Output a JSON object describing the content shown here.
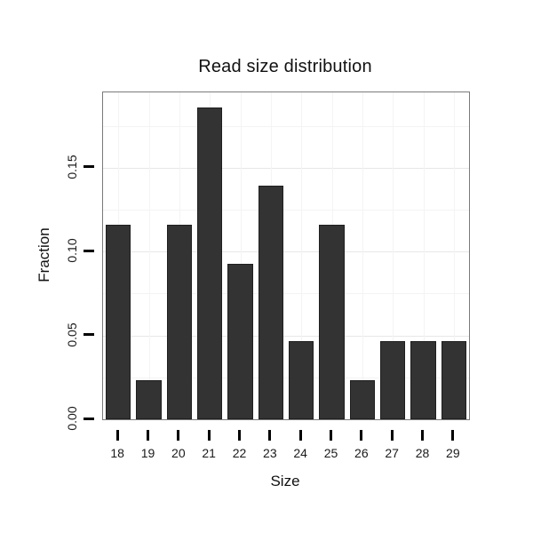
{
  "page": {
    "background_color": "#ffffff"
  },
  "chart_data": {
    "type": "bar",
    "title": "Read size distribution",
    "xlabel": "Size",
    "ylabel": "Fraction",
    "categories": [
      "18",
      "19",
      "20",
      "21",
      "22",
      "23",
      "24",
      "25",
      "26",
      "27",
      "28",
      "29"
    ],
    "values": [
      0.1163,
      0.0233,
      0.1163,
      0.186,
      0.093,
      0.1395,
      0.0465,
      0.1163,
      0.0233,
      0.0465,
      0.0465,
      0.0465
    ],
    "yticks": [
      0.0,
      0.05,
      0.1,
      0.15
    ],
    "ytick_labels": [
      "0.00",
      "0.05",
      "0.10",
      "0.15"
    ],
    "ylim": [
      0,
      0.195
    ],
    "grid": true,
    "legend": false,
    "bar_color": "#333333",
    "bar_border_color": "#1f1f1f",
    "panel_border_color": "#7a7a7a",
    "major_grid_color": "#e7e7e7",
    "minor_grid_color": "#f4f4f4",
    "tick_color": "#000000"
  }
}
